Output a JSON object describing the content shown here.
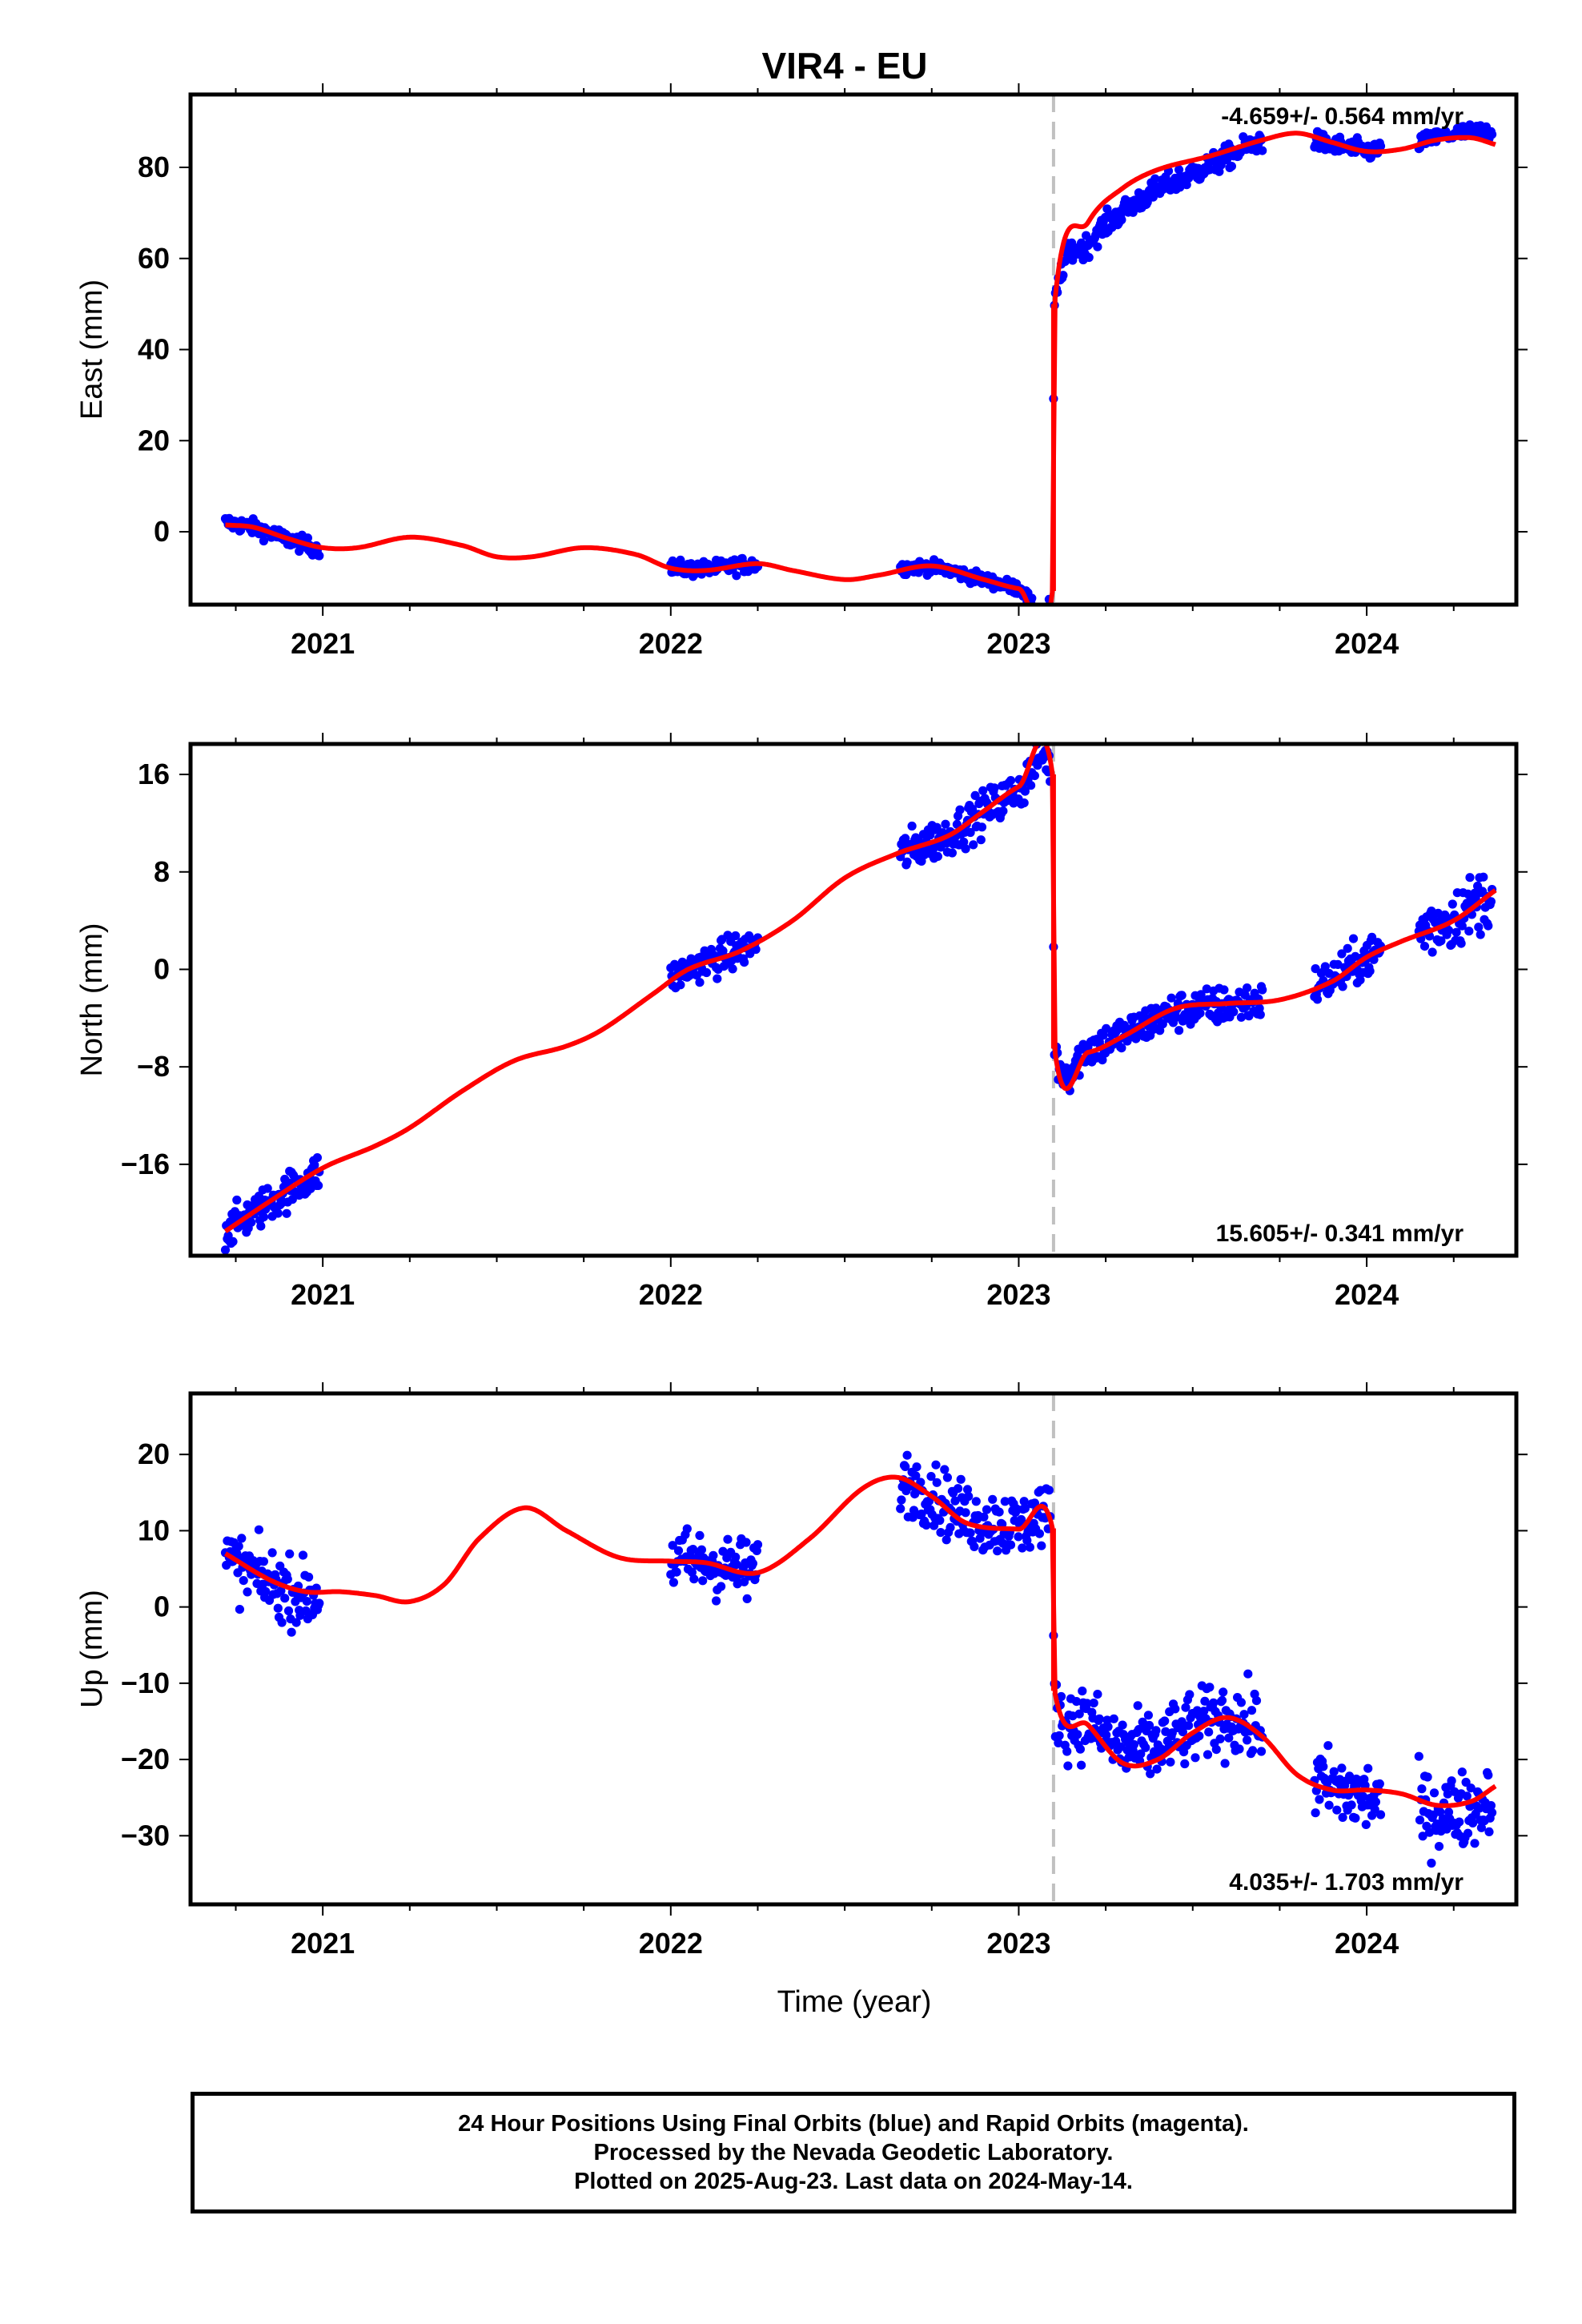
{
  "chart_data": {
    "type": "scatter",
    "title": "VIR4 - EU",
    "xlabel": "Time (year)",
    "xlim": [
      2020.62,
      2024.43
    ],
    "x_ticks": [
      2021,
      2022,
      2023,
      2024
    ],
    "offset_epoch": 2023.1,
    "series_legend": {
      "final_orbits": {
        "name": "Final Orbits",
        "color": "#0000ff"
      },
      "rapid_orbits": {
        "name": "Rapid Orbits",
        "color": "#ff00ff"
      },
      "model": {
        "color": "#ff0000"
      }
    },
    "panels": [
      {
        "id": "east",
        "ylabel": "East (mm)",
        "ylim": [
          -16,
          96
        ],
        "y_ticks": [
          0,
          20,
          40,
          60,
          80
        ],
        "rate_label": "-4.659+/- 0.564 mm/yr",
        "rate_position": "top-right",
        "model_knots": [
          [
            2020.72,
            1.5
          ],
          [
            2020.8,
            1.0
          ],
          [
            2020.9,
            -1.5
          ],
          [
            2021.0,
            -3.5
          ],
          [
            2021.1,
            -3.5
          ],
          [
            2021.25,
            -1.2
          ],
          [
            2021.4,
            -3.0
          ],
          [
            2021.5,
            -5.5
          ],
          [
            2021.6,
            -5.5
          ],
          [
            2021.75,
            -3.5
          ],
          [
            2021.9,
            -5.0
          ],
          [
            2022.0,
            -8.0
          ],
          [
            2022.1,
            -8.5
          ],
          [
            2022.25,
            -7.0
          ],
          [
            2022.35,
            -8.5
          ],
          [
            2022.5,
            -10.5
          ],
          [
            2022.6,
            -9.5
          ],
          [
            2022.75,
            -7.5
          ],
          [
            2022.9,
            -10.5
          ],
          [
            2023.0,
            -12.5
          ],
          [
            2023.097,
            -13.0
          ],
          [
            2023.103,
            50.0
          ],
          [
            2023.2,
            68.0
          ],
          [
            2023.3,
            75.5
          ],
          [
            2023.4,
            79.5
          ],
          [
            2023.55,
            82.5
          ],
          [
            2023.7,
            86.0
          ],
          [
            2023.8,
            87.5
          ],
          [
            2023.9,
            85.5
          ],
          [
            2024.0,
            83.5
          ],
          [
            2024.1,
            84.0
          ],
          [
            2024.2,
            86.0
          ],
          [
            2024.3,
            86.5
          ],
          [
            2024.37,
            85.0
          ]
        ],
        "data_segments": [
          {
            "x": [
              2020.72,
              2020.99
            ],
            "y": [
              3.0,
              -4.5
            ],
            "noise": 1.2
          },
          {
            "x": [
              2022.0,
              2022.25
            ],
            "y": [
              -7.5,
              -7.5
            ],
            "noise": 1.2
          },
          {
            "x": [
              2022.66,
              2023.09
            ],
            "y": [
              -7.0,
              -13.5
            ],
            "noise": 1.0
          },
          {
            "x": [
              2023.1,
              2023.7
            ],
            "y": [
              48.0,
              86.0
            ],
            "noise": 1.8
          },
          {
            "x": [
              2023.85,
              2024.04
            ],
            "y": [
              84.0,
              84.0
            ],
            "noise": 1.5
          },
          {
            "x": [
              2024.15,
              2024.36
            ],
            "y": [
              86.0,
              92.0
            ],
            "noise": 1.2
          }
        ]
      },
      {
        "id": "north",
        "ylabel": "North (mm)",
        "ylim": [
          -23.5,
          18.5
        ],
        "y_ticks": [
          -16,
          -8,
          0,
          8,
          16
        ],
        "rate_label": "15.605+/- 0.341 mm/yr",
        "rate_position": "bottom-right",
        "model_knots": [
          [
            2020.72,
            -21.5
          ],
          [
            2020.85,
            -19.0
          ],
          [
            2021.0,
            -16.3
          ],
          [
            2021.15,
            -14.5
          ],
          [
            2021.25,
            -13.0
          ],
          [
            2021.4,
            -10.0
          ],
          [
            2021.55,
            -7.5
          ],
          [
            2021.7,
            -6.3
          ],
          [
            2021.8,
            -5.0
          ],
          [
            2021.95,
            -2.0
          ],
          [
            2022.05,
            0.0
          ],
          [
            2022.2,
            1.5
          ],
          [
            2022.35,
            4.0
          ],
          [
            2022.5,
            7.5
          ],
          [
            2022.65,
            9.5
          ],
          [
            2022.8,
            11.0
          ],
          [
            2022.9,
            13.0
          ],
          [
            2023.0,
            15.0
          ],
          [
            2023.097,
            16.0
          ],
          [
            2023.103,
            -6.5
          ],
          [
            2023.2,
            -6.8
          ],
          [
            2023.3,
            -5.5
          ],
          [
            2023.45,
            -3.2
          ],
          [
            2023.6,
            -2.8
          ],
          [
            2023.75,
            -2.5
          ],
          [
            2023.9,
            -1.0
          ],
          [
            2024.0,
            1.0
          ],
          [
            2024.1,
            2.3
          ],
          [
            2024.25,
            4.0
          ],
          [
            2024.37,
            6.5
          ]
        ],
        "data_segments": [
          {
            "x": [
              2020.72,
              2020.99
            ],
            "y": [
              -21.5,
              -16.8
            ],
            "noise": 1.1
          },
          {
            "x": [
              2022.0,
              2022.25
            ],
            "y": [
              -0.5,
              2.3
            ],
            "noise": 1.0
          },
          {
            "x": [
              2022.66,
              2023.09
            ],
            "y": [
              9.3,
              15.5
            ],
            "noise": 1.2
          },
          {
            "x": [
              2023.1,
              2023.7
            ],
            "y": [
              -6.5,
              -2.5
            ],
            "noise": 1.1
          },
          {
            "x": [
              2023.85,
              2024.04
            ],
            "y": [
              -1.0,
              1.5
            ],
            "noise": 1.2
          },
          {
            "x": [
              2024.15,
              2024.36
            ],
            "y": [
              3.8,
              6.2
            ],
            "noise": 1.8
          }
        ]
      },
      {
        "id": "up",
        "ylabel": "Up (mm)",
        "ylim": [
          -39,
          28
        ],
        "y_ticks": [
          -30,
          -20,
          -10,
          0,
          10,
          20
        ],
        "rate_label": "4.035+/- 1.703 mm/yr",
        "rate_position": "bottom-right",
        "model_knots": [
          [
            2020.72,
            7.0
          ],
          [
            2020.85,
            3.5
          ],
          [
            2020.95,
            2.0
          ],
          [
            2021.05,
            2.0
          ],
          [
            2021.15,
            1.5
          ],
          [
            2021.25,
            0.7
          ],
          [
            2021.35,
            3.0
          ],
          [
            2021.45,
            9.0
          ],
          [
            2021.58,
            13.0
          ],
          [
            2021.7,
            10.0
          ],
          [
            2021.85,
            6.5
          ],
          [
            2022.0,
            6.0
          ],
          [
            2022.1,
            5.8
          ],
          [
            2022.25,
            4.5
          ],
          [
            2022.4,
            9.0
          ],
          [
            2022.55,
            15.5
          ],
          [
            2022.65,
            17.0
          ],
          [
            2022.75,
            14.5
          ],
          [
            2022.85,
            11.0
          ],
          [
            2023.0,
            10.2
          ],
          [
            2023.097,
            10.3
          ],
          [
            2023.103,
            -11.0
          ],
          [
            2023.2,
            -15.5
          ],
          [
            2023.3,
            -20.5
          ],
          [
            2023.4,
            -20.0
          ],
          [
            2023.5,
            -16.5
          ],
          [
            2023.6,
            -14.5
          ],
          [
            2023.7,
            -17.0
          ],
          [
            2023.8,
            -22.0
          ],
          [
            2023.9,
            -24.0
          ],
          [
            2024.0,
            -24.0
          ],
          [
            2024.1,
            -24.5
          ],
          [
            2024.2,
            -26.0
          ],
          [
            2024.3,
            -25.5
          ],
          [
            2024.37,
            -23.5
          ]
        ],
        "data_segments": [
          {
            "x": [
              2020.72,
              2020.99
            ],
            "y": [
              5.0,
              0.0
            ],
            "noise": 3.0
          },
          {
            "x": [
              2022.0,
              2022.25
            ],
            "y": [
              6.0,
              5.0
            ],
            "noise": 3.0
          },
          {
            "x": [
              2022.66,
              2023.09
            ],
            "y": [
              16.5,
              10.0
            ],
            "noise": 3.0
          },
          {
            "x": [
              2023.1,
              2023.7
            ],
            "y": [
              -14.5,
              -15.0
            ],
            "noise": 3.3
          },
          {
            "x": [
              2023.85,
              2024.04
            ],
            "y": [
              -22.0,
              -28.0
            ],
            "noise": 3.5
          },
          {
            "x": [
              2024.15,
              2024.36
            ],
            "y": [
              -29.0,
              -27.5
            ],
            "noise": 3.5
          }
        ]
      }
    ]
  },
  "footer": {
    "line1": "24 Hour Positions Using Final Orbits (blue) and Rapid Orbits (magenta).",
    "line2": "Processed by the Nevada Geodetic Laboratory.",
    "line3": "Plotted on 2025-Aug-23. Last data on 2024-May-14."
  }
}
